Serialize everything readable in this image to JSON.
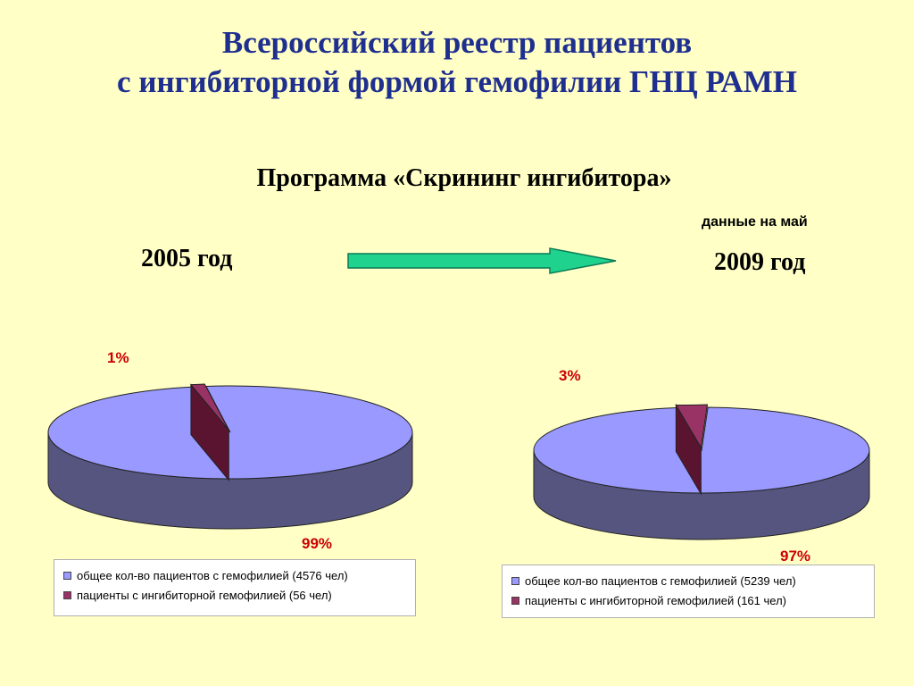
{
  "title_line1": "Всероссийский реестр пациентов",
  "title_line2": "с ингибиторной формой гемофилии ГНЦ РАМН",
  "subtitle": "Программа «Скрининг ингибитора»",
  "year_left": "2005 год",
  "year_right": "2009 год",
  "note_right": "данные на май",
  "colors": {
    "total_top": "#9999ff",
    "total_side": "#55557f",
    "inhib_top": "#993366",
    "inhib_side": "#5a1430",
    "arrow": "#1fd38f"
  },
  "chart_data": [
    {
      "type": "pie",
      "title": "2005 год",
      "slices": [
        {
          "label": "общее кол-во пациентов с гемофилией (4576 чел)",
          "value": 4576,
          "percent_label": "99%"
        },
        {
          "label": "пациенты с ингибиторной гемофилией (56 чел)",
          "value": 56,
          "percent_label": "1%"
        }
      ],
      "legend": "bottom"
    },
    {
      "type": "pie",
      "title": "2009 год",
      "slices": [
        {
          "label": "общее кол-во пациентов с гемофилией (5239 чел)",
          "value": 5239,
          "percent_label": "97%"
        },
        {
          "label": "пациенты с ингибиторной гемофилией (161 чел)",
          "value": 161,
          "percent_label": "3%"
        }
      ],
      "legend": "bottom"
    }
  ]
}
